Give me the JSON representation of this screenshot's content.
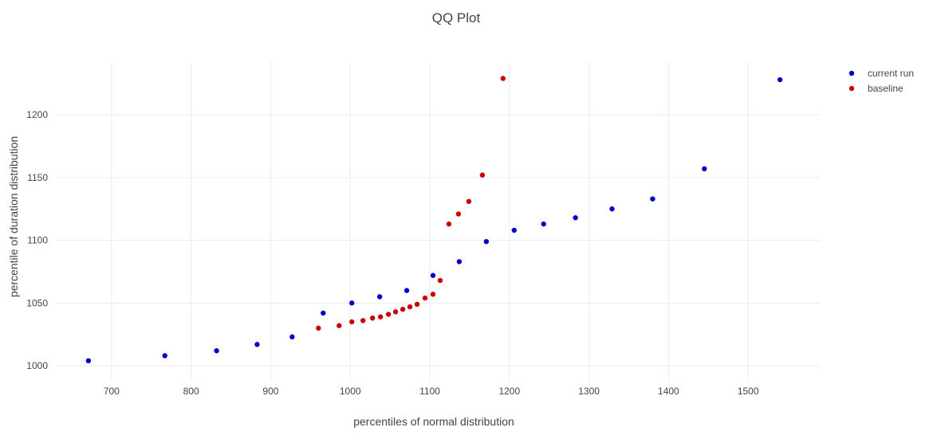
{
  "chart_data": {
    "type": "scatter",
    "title": "QQ Plot",
    "xlabel": "percentiles of normal distribution",
    "ylabel": "percentile of duration distribution",
    "xlim": [
      630,
      1590
    ],
    "ylim": [
      988,
      1242
    ],
    "xticks": [
      700,
      800,
      900,
      1000,
      1100,
      1200,
      1300,
      1400,
      1500
    ],
    "yticks": [
      1000,
      1050,
      1100,
      1150,
      1200
    ],
    "grid": true,
    "legend_position": "top-right",
    "series": [
      {
        "name": "current run",
        "color": "#0000cc",
        "points": [
          {
            "x": 671,
            "y": 1004
          },
          {
            "x": 767,
            "y": 1008
          },
          {
            "x": 832,
            "y": 1012
          },
          {
            "x": 883,
            "y": 1017
          },
          {
            "x": 927,
            "y": 1023
          },
          {
            "x": 966,
            "y": 1042
          },
          {
            "x": 1002,
            "y": 1050
          },
          {
            "x": 1037,
            "y": 1055
          },
          {
            "x": 1071,
            "y": 1060
          },
          {
            "x": 1104,
            "y": 1072
          },
          {
            "x": 1137,
            "y": 1083
          },
          {
            "x": 1171,
            "y": 1099
          },
          {
            "x": 1206,
            "y": 1108
          },
          {
            "x": 1243,
            "y": 1113
          },
          {
            "x": 1283,
            "y": 1118
          },
          {
            "x": 1329,
            "y": 1125
          },
          {
            "x": 1380,
            "y": 1133
          },
          {
            "x": 1445,
            "y": 1157
          },
          {
            "x": 1540,
            "y": 1228
          }
        ]
      },
      {
        "name": "baseline",
        "color": "#cc0000",
        "points": [
          {
            "x": 960,
            "y": 1030
          },
          {
            "x": 986,
            "y": 1032
          },
          {
            "x": 1002,
            "y": 1035
          },
          {
            "x": 1016,
            "y": 1036
          },
          {
            "x": 1028,
            "y": 1038
          },
          {
            "x": 1038,
            "y": 1039
          },
          {
            "x": 1048,
            "y": 1041
          },
          {
            "x": 1057,
            "y": 1043
          },
          {
            "x": 1066,
            "y": 1045
          },
          {
            "x": 1075,
            "y": 1047
          },
          {
            "x": 1084,
            "y": 1049
          },
          {
            "x": 1094,
            "y": 1054
          },
          {
            "x": 1104,
            "y": 1057
          },
          {
            "x": 1113,
            "y": 1068
          },
          {
            "x": 1124,
            "y": 1113
          },
          {
            "x": 1136,
            "y": 1121
          },
          {
            "x": 1149,
            "y": 1131
          },
          {
            "x": 1166,
            "y": 1152
          },
          {
            "x": 1192,
            "y": 1229
          }
        ]
      }
    ]
  }
}
